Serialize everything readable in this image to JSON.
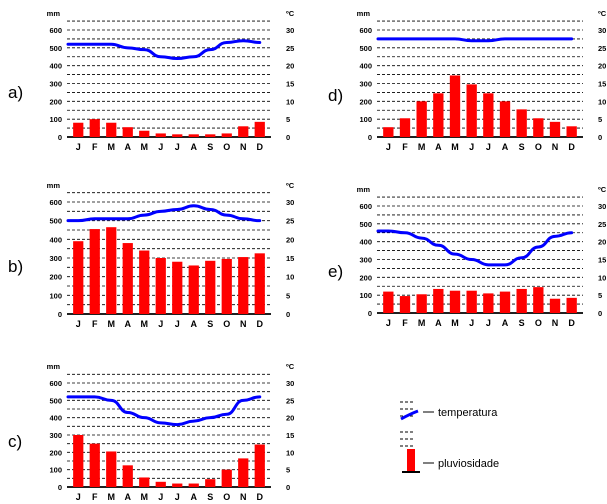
{
  "layout_note": "",
  "colors": {
    "bar": "#ff0000",
    "line": "#0000ff",
    "grid": "#000000"
  },
  "months": [
    "J",
    "F",
    "M",
    "A",
    "M",
    "J",
    "J",
    "A",
    "S",
    "O",
    "N",
    "D"
  ],
  "mm_ticks": [
    0,
    100,
    200,
    300,
    400,
    500,
    600
  ],
  "c_ticks": [
    0,
    5,
    10,
    15,
    20,
    25,
    30
  ],
  "units": {
    "mm": "mm",
    "celsius": "ºC"
  },
  "legend": {
    "temperature": "temperatura",
    "precipitation": "pluviosidade"
  },
  "chart_data": [
    {
      "type": "bar",
      "label": "a)",
      "precipitation_mm": [
        80,
        100,
        80,
        55,
        35,
        20,
        15,
        15,
        15,
        20,
        60,
        85
      ],
      "temperature_c": [
        26,
        26,
        26,
        25,
        24.5,
        22.5,
        22,
        22.5,
        24.5,
        26.5,
        27,
        26.5
      ],
      "ylim_mm": [
        0,
        600
      ],
      "ylim_c": [
        0,
        30
      ]
    },
    {
      "type": "bar",
      "label": "b)",
      "precipitation_mm": [
        390,
        455,
        465,
        380,
        340,
        300,
        280,
        260,
        285,
        295,
        305,
        325
      ],
      "temperature_c": [
        25,
        25.5,
        25.5,
        25.5,
        26.5,
        27.5,
        28,
        29,
        28,
        26.5,
        25.5,
        25
      ],
      "ylim_mm": [
        0,
        600
      ],
      "ylim_c": [
        0,
        30
      ]
    },
    {
      "type": "bar",
      "label": "c)",
      "precipitation_mm": [
        300,
        250,
        205,
        125,
        55,
        30,
        20,
        20,
        45,
        100,
        165,
        245
      ],
      "temperature_c": [
        26,
        26,
        25,
        21.5,
        20,
        18.5,
        18,
        19,
        20,
        21,
        25,
        26
      ],
      "ylim_mm": [
        0,
        600
      ],
      "ylim_c": [
        0,
        30
      ]
    },
    {
      "type": "bar",
      "label": "d)",
      "precipitation_mm": [
        55,
        105,
        200,
        245,
        345,
        295,
        245,
        200,
        155,
        105,
        85,
        60
      ],
      "temperature_c": [
        27.5,
        27.5,
        27.5,
        27.5,
        27.5,
        27,
        27,
        27.5,
        27.5,
        27.5,
        27.5,
        27.5
      ],
      "ylim_mm": [
        0,
        600
      ],
      "ylim_c": [
        0,
        30
      ]
    },
    {
      "type": "bar",
      "label": "e)",
      "precipitation_mm": [
        120,
        95,
        105,
        135,
        125,
        125,
        110,
        120,
        135,
        145,
        80,
        85
      ],
      "temperature_c": [
        23,
        22.5,
        21,
        19,
        16.5,
        15,
        13.5,
        13.5,
        15.5,
        18.5,
        21.5,
        22.5
      ],
      "ylim_mm": [
        0,
        600
      ],
      "ylim_c": [
        0,
        30
      ]
    }
  ]
}
